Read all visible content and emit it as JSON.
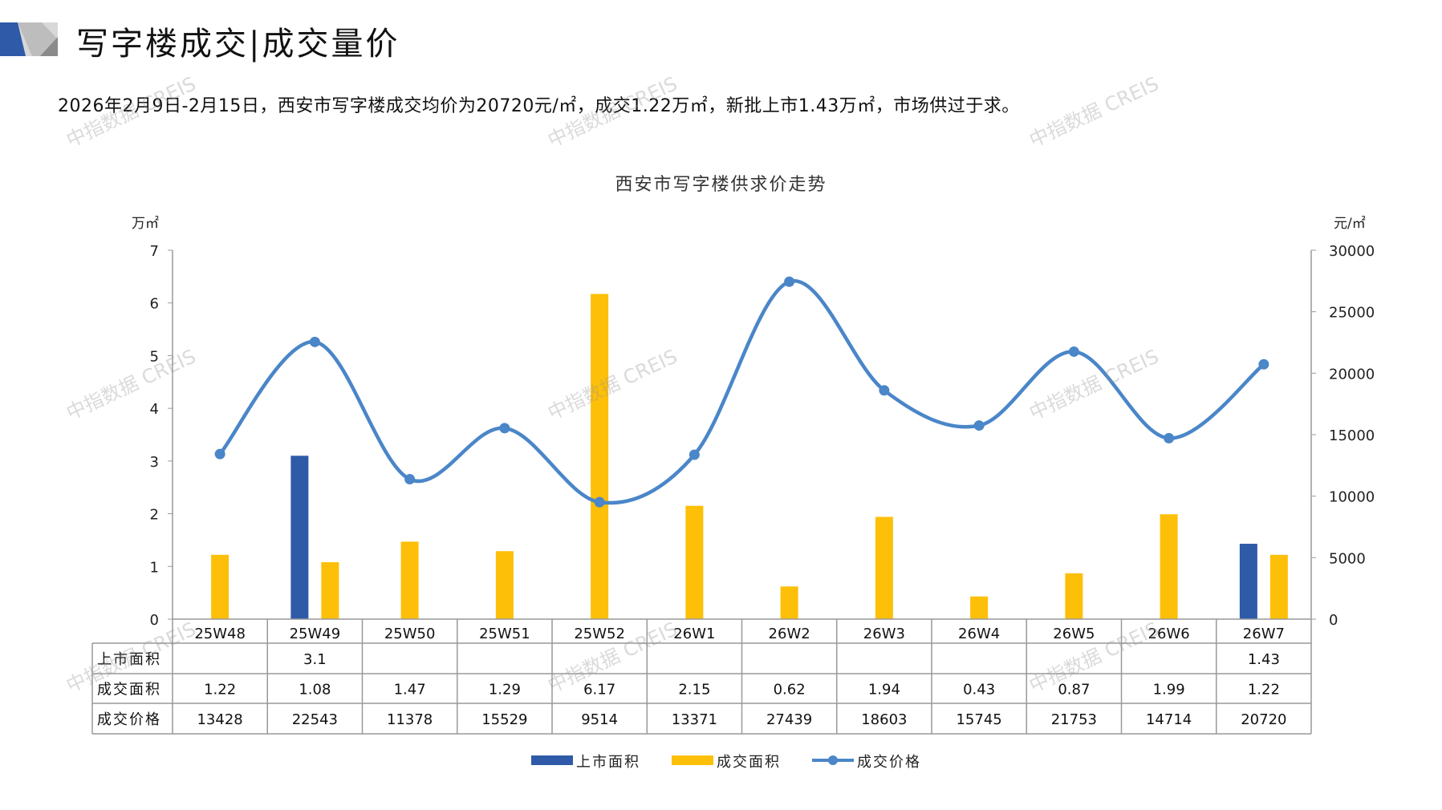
{
  "header": {
    "title": "写字楼成交|成交量价"
  },
  "summary": "2026年2月9日-2月15日，西安市写字楼成交均价为20720元/㎡，成交1.22万㎡，新批上市1.43万㎡，市场供过于求。",
  "watermark": "中指数据 CREIS",
  "colors": {
    "supply": "#2E5AA8",
    "deal": "#FDBF07",
    "price": "#4A86C8"
  },
  "chart_data": {
    "type": "bar+line",
    "title": "西安市写字楼供求价走势",
    "y_left_label": "万㎡",
    "y_right_label": "元/㎡",
    "y_left_range": [
      0,
      7
    ],
    "y_left_ticks": [
      "0",
      "1",
      "2",
      "3",
      "4",
      "5",
      "6",
      "7"
    ],
    "y_right_range": [
      0,
      30000
    ],
    "y_right_ticks": [
      "0",
      "5000",
      "10000",
      "15000",
      "20000",
      "25000",
      "30000"
    ],
    "categories": [
      "25W48",
      "25W49",
      "25W50",
      "25W51",
      "25W52",
      "26W1",
      "26W2",
      "26W3",
      "26W4",
      "26W5",
      "26W6",
      "26W7"
    ],
    "series": [
      {
        "name": "上市面积",
        "type": "bar",
        "axis": "left",
        "values": [
          null,
          3.1,
          null,
          null,
          null,
          null,
          null,
          null,
          null,
          null,
          null,
          1.43
        ],
        "labels": [
          "",
          "3.1",
          "",
          "",
          "",
          "",
          "",
          "",
          "",
          "",
          "",
          "1.43"
        ]
      },
      {
        "name": "成交面积",
        "type": "bar",
        "axis": "left",
        "values": [
          1.22,
          1.08,
          1.47,
          1.29,
          6.17,
          2.15,
          0.62,
          1.94,
          0.43,
          0.87,
          1.99,
          1.22
        ],
        "labels": [
          "1.22",
          "1.08",
          "1.47",
          "1.29",
          "6.17",
          "2.15",
          "0.62",
          "1.94",
          "0.43",
          "0.87",
          "1.99",
          "1.22"
        ]
      },
      {
        "name": "成交价格",
        "type": "line",
        "axis": "right",
        "values": [
          13428,
          22543,
          11378,
          15529,
          9514,
          13371,
          27439,
          18603,
          15745,
          21753,
          14714,
          20720
        ],
        "labels": [
          "13428",
          "22543",
          "11378",
          "15529",
          "9514",
          "13371",
          "27439",
          "18603",
          "15745",
          "21753",
          "14714",
          "20720"
        ]
      }
    ],
    "legend": "bottom-center"
  }
}
